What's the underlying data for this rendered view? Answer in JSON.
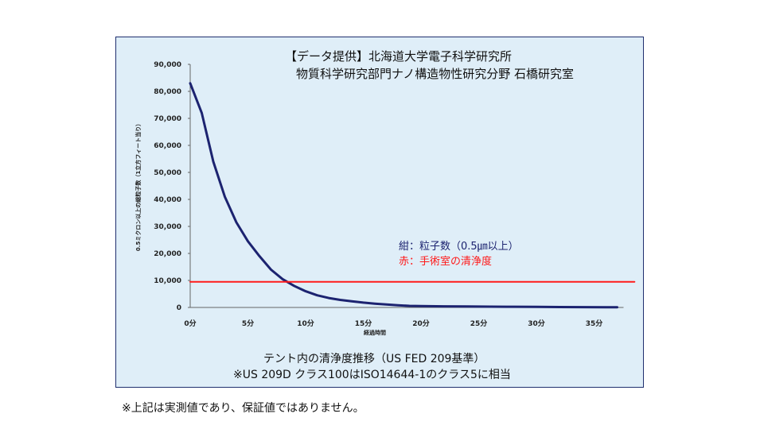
{
  "chart_data": {
    "type": "line",
    "credit_line1": "【データ提供】北海道大学電子科学研究所",
    "credit_line2": "物質科学研究部門ナノ構造物性研究分野 石橋研究室",
    "xlabel": "経過時間",
    "ylabel": "0.5ミクロン以上の総粒子数（1立方フィート当り）",
    "xlim": [
      0,
      37
    ],
    "ylim": [
      0,
      90000
    ],
    "x_ticks": [
      "0分",
      "5分",
      "10分",
      "15分",
      "20分",
      "25分",
      "30分",
      "35分"
    ],
    "y_ticks": [
      "0",
      "10,000",
      "20,000",
      "30,000",
      "40,000",
      "50,000",
      "60,000",
      "70,000",
      "80,000",
      "90,000"
    ],
    "series": [
      {
        "name": "粒子数（0.5㎛以上）",
        "color": "#1c2370",
        "x": [
          0,
          1,
          2,
          3,
          4,
          5,
          6,
          7,
          8,
          9,
          10,
          11,
          12,
          13,
          14,
          15,
          16,
          17,
          18,
          19,
          20,
          22,
          24,
          26,
          28,
          30,
          32,
          34,
          36,
          37
        ],
        "values": [
          83000,
          72000,
          54000,
          41000,
          31500,
          24500,
          19000,
          14000,
          10500,
          8000,
          6000,
          4500,
          3500,
          2800,
          2300,
          1800,
          1400,
          1100,
          800,
          600,
          500,
          400,
          350,
          300,
          250,
          200,
          150,
          120,
          100,
          100
        ]
      },
      {
        "name": "手術室の清浄度",
        "color": "#ff1a1a",
        "x": [
          0,
          38.5
        ],
        "values": [
          9500,
          9500
        ]
      }
    ],
    "legend_navy": "紺：粒子数（0.5㎛以上）",
    "legend_red": "赤：手術室の清浄度",
    "caption_line1": "テント内の清浄度推移（US FED 209基準）",
    "caption_line2": "※US 209D クラス100はISO14644-1のクラス5に相当"
  },
  "footnote": "※上記は実測値であり、保証値ではありません。"
}
